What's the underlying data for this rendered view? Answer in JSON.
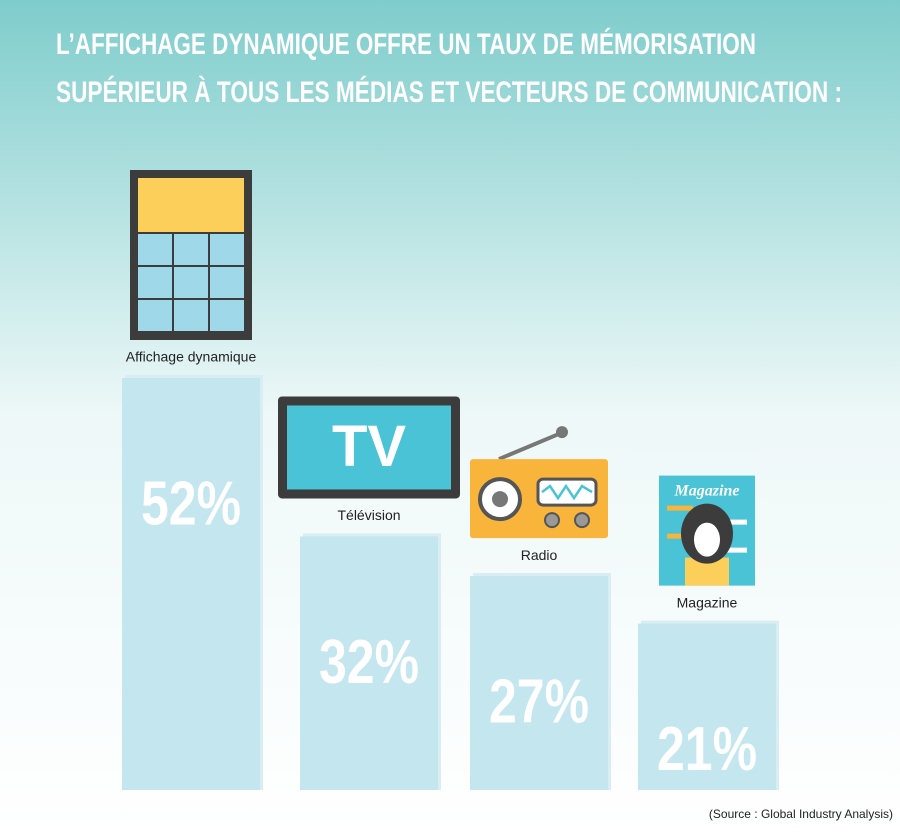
{
  "chart_data": {
    "type": "bar",
    "title": [
      "L’AFFICHAGE DYNAMIQUE OFFRE UN TAUX DE MÉMORISATION",
      "SUPÉRIEUR À TOUS LES MÉDIAS ET VECTEURS DE COMMUNICATION :"
    ],
    "categories": [
      "Affichage dynamique",
      "Télévision",
      "Radio",
      "Magazine"
    ],
    "values": [
      52,
      32,
      27,
      21
    ],
    "value_labels": [
      "52%",
      "32%",
      "27%",
      "21%"
    ],
    "color": "#c3e6ef",
    "source": "(Source : Global Industry Analysis)"
  },
  "icons": {
    "tv": "TV",
    "magazine": "Magazine"
  }
}
